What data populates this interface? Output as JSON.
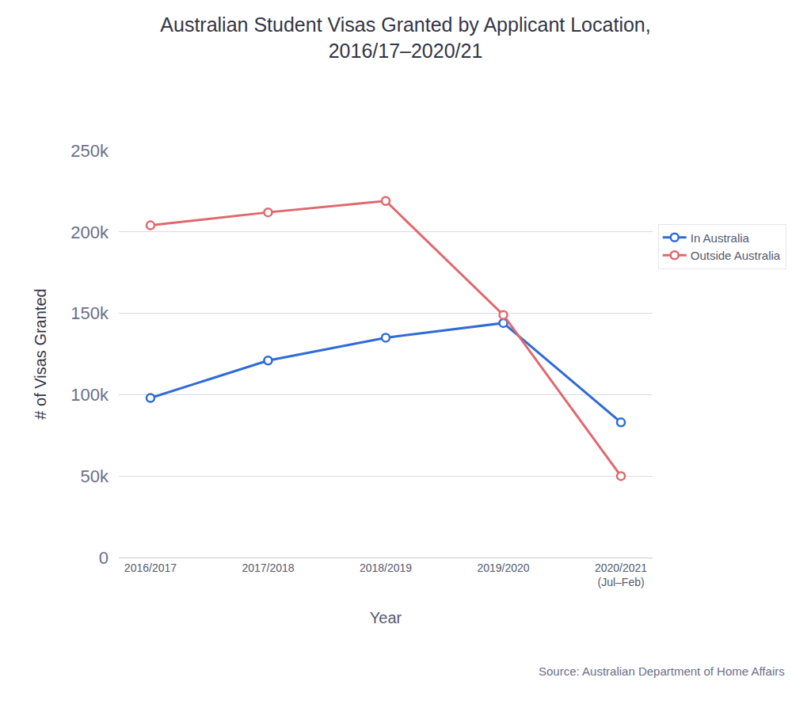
{
  "chart_data": {
    "type": "line",
    "title": "Australian Student Visas Granted by Applicant Location,\n2016/17–2020/21",
    "x_label": "Year",
    "y_label": "# of Visas Granted",
    "source": "Source: Australian Department of Home Affairs",
    "categories": [
      "2016/2017",
      "2017/2018",
      "2018/2019",
      "2019/2020",
      "2020/2021\n(Jul–Feb)"
    ],
    "series": [
      {
        "name": "In Australia",
        "color": "#2f6bd6",
        "marker": "circle",
        "values": [
          98000,
          121000,
          135000,
          144000,
          83000
        ]
      },
      {
        "name": "Outside Australia",
        "color": "#e0686e",
        "marker": "circle",
        "values": [
          204000,
          212000,
          219000,
          149000,
          50000
        ]
      }
    ],
    "ylim": [
      0,
      250000
    ],
    "yticks": [
      0,
      {
        "value": 50000,
        "label": "50k"
      },
      {
        "value": 100000,
        "label": "100k"
      },
      {
        "value": 150000,
        "label": "150k"
      },
      {
        "value": 200000,
        "label": "200k"
      },
      {
        "value": 250000,
        "label": "250k"
      }
    ],
    "grid": true,
    "legend": "right"
  }
}
